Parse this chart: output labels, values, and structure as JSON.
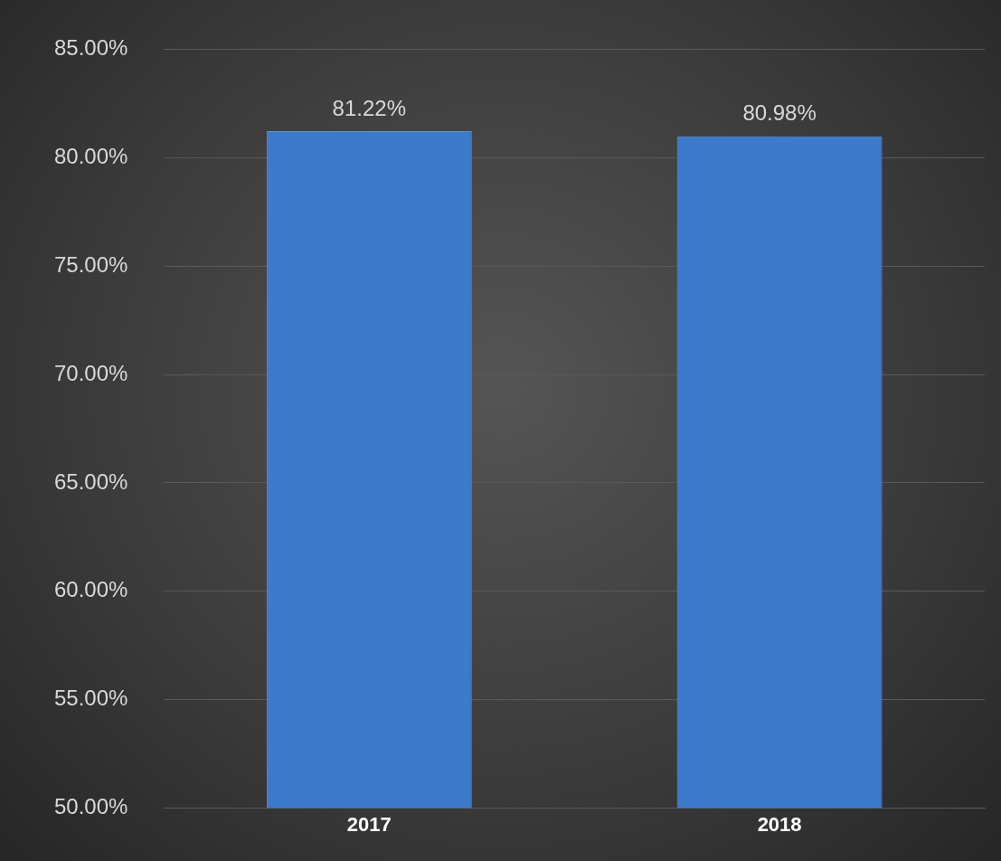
{
  "chart_data": {
    "type": "bar",
    "categories": [
      "2017",
      "2018"
    ],
    "series": [
      {
        "color": "#3c7acb",
        "values": [
          81.22,
          80.98
        ],
        "value_labels": [
          "81.22%",
          "80.98%"
        ]
      }
    ],
    "ylim": [
      50,
      85
    ],
    "yticks": [
      {
        "value": 50,
        "label": "50.00%"
      },
      {
        "value": 55,
        "label": "55.00%"
      },
      {
        "value": 60,
        "label": "60.00%"
      },
      {
        "value": 65,
        "label": "65.00%"
      },
      {
        "value": 70,
        "label": "70.00%"
      },
      {
        "value": 75,
        "label": "75.00%"
      },
      {
        "value": 80,
        "label": "80.00%"
      },
      {
        "value": 85,
        "label": "85.00%"
      }
    ],
    "grid": "y"
  }
}
